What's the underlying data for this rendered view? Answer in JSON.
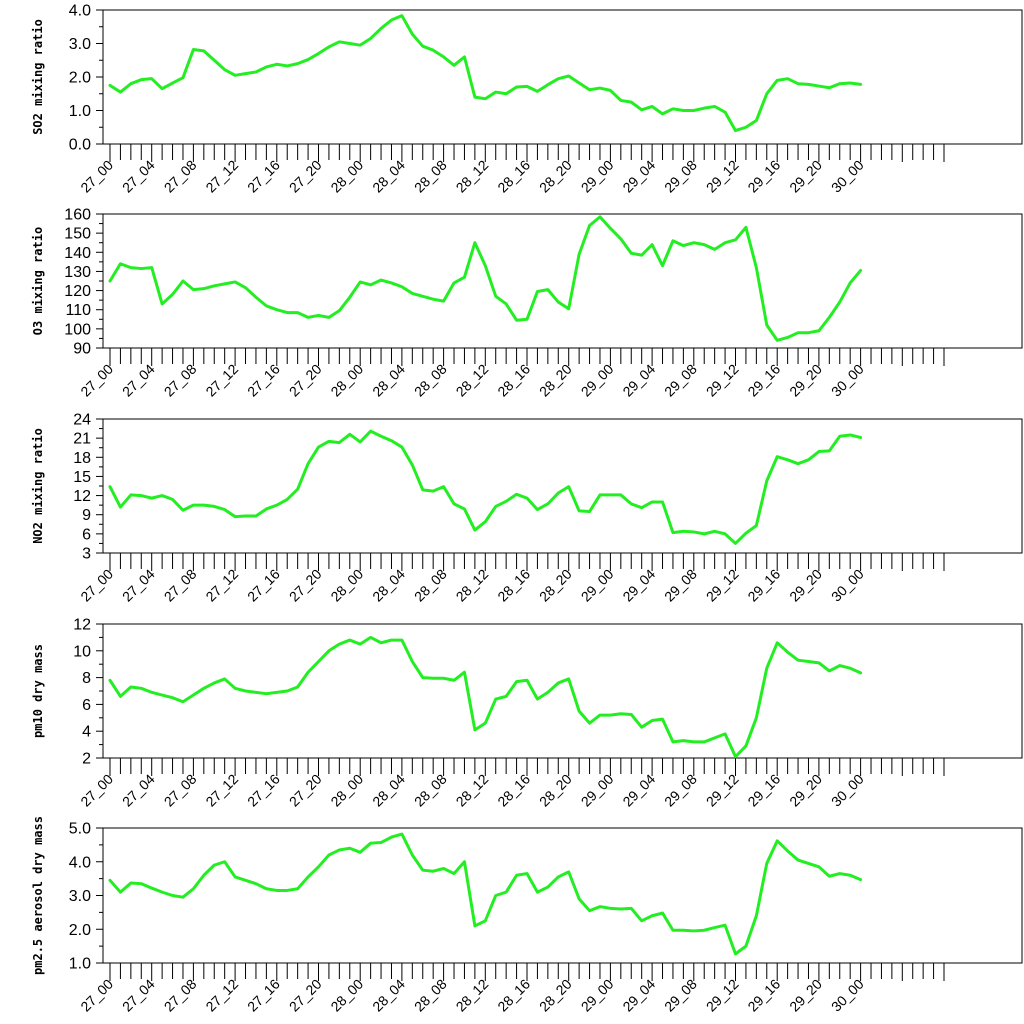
{
  "line_color": "#22ee22",
  "chart_data": [
    {
      "type": "line",
      "title": "",
      "xlabel": "",
      "ylabel": "SO2 mixing ratio",
      "ylim": [
        0.0,
        4.0
      ],
      "yticks": [
        "0.0",
        "1.0",
        "2.0",
        "3.0",
        "4.0"
      ],
      "xlim": [
        0,
        80
      ],
      "xtick_labels": [
        "27_00",
        "27_04",
        "27_08",
        "27_12",
        "27_16",
        "27_20",
        "28_00",
        "28_04",
        "28_08",
        "28_12",
        "28_16",
        "28_20",
        "29_00",
        "29_04",
        "29_08",
        "29_12",
        "29_16",
        "29_20",
        "30_00"
      ],
      "grid": false,
      "series": [
        {
          "values": [
            1.75,
            1.55,
            1.8,
            1.92,
            1.95,
            1.65,
            1.82,
            1.98,
            2.82,
            2.78,
            2.5,
            2.22,
            2.05,
            2.1,
            2.15,
            2.3,
            2.38,
            2.33,
            2.4,
            2.52,
            2.7,
            2.9,
            3.05,
            3.0,
            2.95,
            3.15,
            3.45,
            3.7,
            3.83,
            3.28,
            2.92,
            2.8,
            2.6,
            2.35,
            2.6,
            1.4,
            1.35,
            1.55,
            1.5,
            1.7,
            1.72,
            1.57,
            1.77,
            1.95,
            2.03,
            1.82,
            1.62,
            1.67,
            1.6,
            1.3,
            1.25,
            1.02,
            1.12,
            0.9,
            1.05,
            1.0,
            1.0,
            1.07,
            1.12,
            0.95,
            0.4,
            0.5,
            0.7,
            1.5,
            1.9,
            1.95,
            1.8,
            1.78,
            1.73,
            1.68,
            1.8,
            1.82,
            1.78
          ]
        }
      ]
    },
    {
      "type": "line",
      "title": "",
      "xlabel": "",
      "ylabel": "O3 mixing ratio",
      "ylim": [
        90,
        160
      ],
      "yticks": [
        "90",
        "100",
        "110",
        "120",
        "130",
        "140",
        "150",
        "160"
      ],
      "xlim": [
        0,
        80
      ],
      "xtick_labels": [
        "27_00",
        "27_04",
        "27_08",
        "27_12",
        "27_16",
        "27_20",
        "28_00",
        "28_04",
        "28_08",
        "28_12",
        "28_16",
        "28_20",
        "29_00",
        "29_04",
        "29_08",
        "29_12",
        "29_16",
        "29_20",
        "30_00"
      ],
      "grid": false,
      "series": [
        {
          "values": [
            125,
            134,
            132,
            131.5,
            132,
            113,
            118,
            125,
            120.5,
            121,
            122.5,
            123.5,
            124.5,
            121.5,
            116.5,
            112,
            110,
            108.5,
            108.5,
            106,
            107,
            106,
            109.5,
            116.5,
            124.5,
            123,
            125.5,
            124,
            122,
            118.5,
            117,
            115.5,
            114.5,
            124,
            127,
            145,
            133,
            117,
            113,
            104.5,
            105,
            119.5,
            120.5,
            114,
            110.5,
            139,
            154,
            158.5,
            152.5,
            147,
            139.5,
            138.5,
            144,
            133,
            146,
            143.5,
            145,
            144,
            141.5,
            145,
            146.5,
            153,
            132,
            102,
            94,
            95.5,
            98,
            98,
            99,
            106,
            114,
            124,
            130.5
          ]
        }
      ]
    },
    {
      "type": "line",
      "title": "",
      "xlabel": "",
      "ylabel": "NO2 mixing ratio",
      "ylim": [
        3,
        24
      ],
      "yticks": [
        "3",
        "6",
        "9",
        "12",
        "15",
        "18",
        "21",
        "24"
      ],
      "xlim": [
        0,
        80
      ],
      "xtick_labels": [
        "27_00",
        "27_04",
        "27_08",
        "27_12",
        "27_16",
        "27_20",
        "28_00",
        "28_04",
        "28_08",
        "28_12",
        "28_16",
        "28_20",
        "29_00",
        "29_04",
        "29_08",
        "29_12",
        "29_16",
        "29_20",
        "30_00"
      ],
      "grid": false,
      "series": [
        {
          "values": [
            13.4,
            10.2,
            12.1,
            12.0,
            11.6,
            12.0,
            11.4,
            9.7,
            10.5,
            10.5,
            10.3,
            9.8,
            8.7,
            8.8,
            8.8,
            9.9,
            10.5,
            11.4,
            13.0,
            17.0,
            19.6,
            20.5,
            20.3,
            21.6,
            20.4,
            22.1,
            21.3,
            20.6,
            19.6,
            16.8,
            12.9,
            12.7,
            13.4,
            10.7,
            9.9,
            6.6,
            7.9,
            10.3,
            11.1,
            12.2,
            11.6,
            9.8,
            10.7,
            12.4,
            13.4,
            9.6,
            9.5,
            12.1,
            12.1,
            12.1,
            10.7,
            10.1,
            11.0,
            11.0,
            6.2,
            6.4,
            6.3,
            6.0,
            6.4,
            6.0,
            4.5,
            6.1,
            7.3,
            14.3,
            18.1,
            17.6,
            17.0,
            17.6,
            18.9,
            19.0,
            21.3,
            21.5,
            21.1
          ]
        }
      ]
    },
    {
      "type": "line",
      "title": "",
      "xlabel": "",
      "ylabel": "pm10 dry mass",
      "ylim": [
        2,
        12
      ],
      "yticks": [
        "2",
        "4",
        "6",
        "8",
        "10",
        "12"
      ],
      "xlim": [
        0,
        80
      ],
      "xtick_labels": [
        "27_00",
        "27_04",
        "27_08",
        "27_12",
        "27_16",
        "27_20",
        "28_00",
        "28_04",
        "28_08",
        "28_12",
        "28_16",
        "28_20",
        "29_00",
        "29_04",
        "29_08",
        "29_12",
        "29_16",
        "29_20",
        "30_00"
      ],
      "grid": false,
      "series": [
        {
          "values": [
            7.8,
            6.6,
            7.3,
            7.2,
            6.9,
            6.7,
            6.5,
            6.2,
            6.7,
            7.2,
            7.6,
            7.9,
            7.2,
            7.0,
            6.9,
            6.8,
            6.9,
            7.0,
            7.3,
            8.4,
            9.2,
            10.0,
            10.5,
            10.8,
            10.5,
            11.0,
            10.6,
            10.8,
            10.8,
            9.2,
            8.0,
            7.95,
            7.95,
            7.8,
            8.4,
            4.1,
            4.6,
            6.4,
            6.6,
            7.7,
            7.8,
            6.4,
            6.9,
            7.6,
            7.9,
            5.5,
            4.6,
            5.2,
            5.2,
            5.3,
            5.25,
            4.3,
            4.8,
            4.9,
            3.2,
            3.3,
            3.2,
            3.2,
            3.5,
            3.8,
            2.1,
            2.9,
            5.0,
            8.7,
            10.6,
            9.9,
            9.3,
            9.2,
            9.1,
            8.5,
            8.9,
            8.7,
            8.35
          ]
        }
      ]
    },
    {
      "type": "line",
      "title": "",
      "xlabel": "",
      "ylabel": "pm2.5 aerosol dry mass",
      "ylim": [
        1.0,
        5.0
      ],
      "yticks": [
        "1.0",
        "2.0",
        "3.0",
        "4.0",
        "5.0"
      ],
      "xlim": [
        0,
        80
      ],
      "xtick_labels": [
        "27_00",
        "27_04",
        "27_08",
        "27_12",
        "27_16",
        "27_20",
        "28_00",
        "28_04",
        "28_08",
        "28_12",
        "28_16",
        "28_20",
        "29_00",
        "29_04",
        "29_08",
        "29_12",
        "29_16",
        "29_20",
        "30_00"
      ],
      "grid": false,
      "series": [
        {
          "values": [
            3.45,
            3.1,
            3.37,
            3.35,
            3.22,
            3.1,
            3.0,
            2.95,
            3.2,
            3.6,
            3.9,
            4.0,
            3.55,
            3.45,
            3.35,
            3.2,
            3.15,
            3.15,
            3.2,
            3.55,
            3.85,
            4.2,
            4.35,
            4.4,
            4.28,
            4.55,
            4.57,
            4.73,
            4.82,
            4.2,
            3.75,
            3.72,
            3.8,
            3.65,
            4.0,
            2.1,
            2.25,
            3.0,
            3.1,
            3.6,
            3.65,
            3.1,
            3.25,
            3.55,
            3.7,
            2.9,
            2.55,
            2.67,
            2.62,
            2.6,
            2.62,
            2.25,
            2.4,
            2.48,
            1.97,
            1.97,
            1.95,
            1.97,
            2.05,
            2.12,
            1.27,
            1.5,
            2.4,
            3.95,
            4.62,
            4.32,
            4.05,
            3.95,
            3.85,
            3.57,
            3.65,
            3.6,
            3.47
          ]
        }
      ]
    }
  ]
}
